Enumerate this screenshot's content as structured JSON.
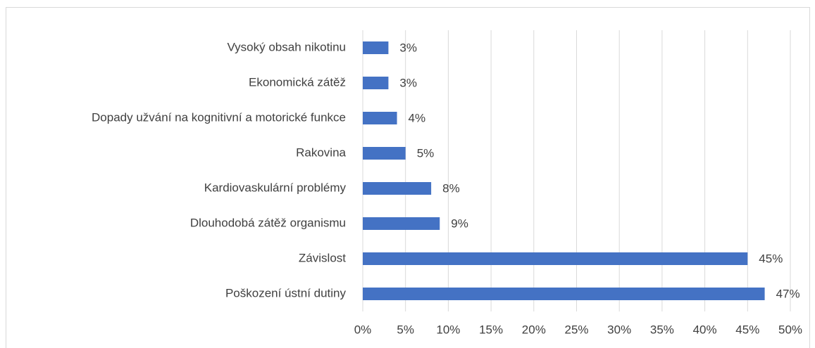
{
  "chart_data": {
    "type": "bar",
    "orientation": "horizontal",
    "categories": [
      "Vysoký obsah nikotinu",
      "Ekonomická zátěž",
      "Dopady užvání na kognitivní a motorické funkce",
      "Rakovina",
      "Kardiovaskulární problémy",
      "Dlouhodobá zátěž organismu",
      "Závislost",
      "Poškození ústní dutiny"
    ],
    "values": [
      3,
      3,
      4,
      5,
      8,
      9,
      45,
      47
    ],
    "value_labels": [
      "3%",
      "3%",
      "4%",
      "5%",
      "8%",
      "9%",
      "45%",
      "47%"
    ],
    "color": "#4472c4",
    "xlim": [
      0,
      50
    ],
    "xticks": [
      {
        "value": 0,
        "label": "0%"
      },
      {
        "value": 5,
        "label": "5%"
      },
      {
        "value": 10,
        "label": "10%"
      },
      {
        "value": 15,
        "label": "15%"
      },
      {
        "value": 20,
        "label": "20%"
      },
      {
        "value": 25,
        "label": "25%"
      },
      {
        "value": 30,
        "label": "30%"
      },
      {
        "value": 35,
        "label": "35%"
      },
      {
        "value": 40,
        "label": "40%"
      },
      {
        "value": 45,
        "label": "45%"
      },
      {
        "value": 50,
        "label": "50%"
      }
    ],
    "grid": true
  }
}
